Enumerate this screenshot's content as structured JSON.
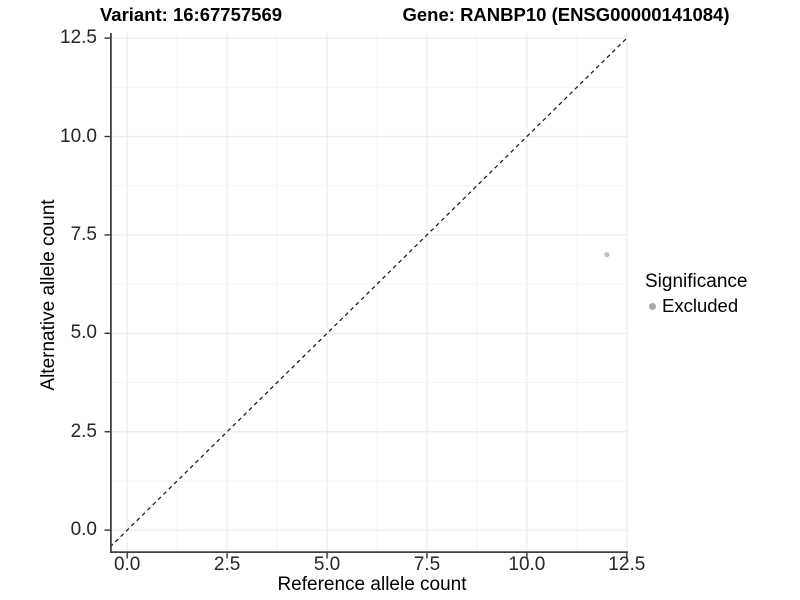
{
  "figure": {
    "titles": {
      "variant": "Variant: 16:67757569",
      "gene": "Gene: RANBP10 (ENSG00000141084)"
    },
    "x_axis": {
      "label": "Reference allele count",
      "tick_labels": [
        "0.0",
        "2.5",
        "5.0",
        "7.5",
        "10.0",
        "12.5"
      ]
    },
    "y_axis": {
      "label": "Alternative allele count",
      "tick_labels": [
        "0.0",
        "2.5",
        "5.0",
        "7.5",
        "10.0",
        "12.5"
      ]
    },
    "legend": {
      "title": "Significance",
      "items": [
        {
          "label": "Excluded",
          "color": "#a8a8a8"
        }
      ]
    }
  },
  "chart_data": {
    "type": "scatter",
    "title": "Variant: 16:67757569 / Gene: RANBP10 (ENSG00000141084)",
    "xlabel": "Reference allele count",
    "ylabel": "Alternative allele count",
    "xlim": [
      -0.43,
      12.53
    ],
    "ylim": [
      -0.58,
      12.63
    ],
    "x_ticks": [
      0,
      2.5,
      5,
      7.5,
      10,
      12.5
    ],
    "y_ticks": [
      0,
      2.5,
      5,
      7.5,
      10,
      12.5
    ],
    "grid": true,
    "minor_grid": true,
    "legend_position": "right",
    "series": [
      {
        "name": "Excluded",
        "color": "#c0c0c0",
        "point_radius": 2.6,
        "points": [
          {
            "x": 12,
            "y": 7
          }
        ]
      }
    ],
    "reference_line": {
      "equation": "y = x",
      "style": "dashed",
      "color": "#111111"
    }
  },
  "colors": {
    "background": "#ffffff",
    "grid_major": "#ececec",
    "grid_minor": "#f5f5f5",
    "axis_line": "#404040",
    "tick_mark": "#333333",
    "tick_text": "#262626"
  }
}
